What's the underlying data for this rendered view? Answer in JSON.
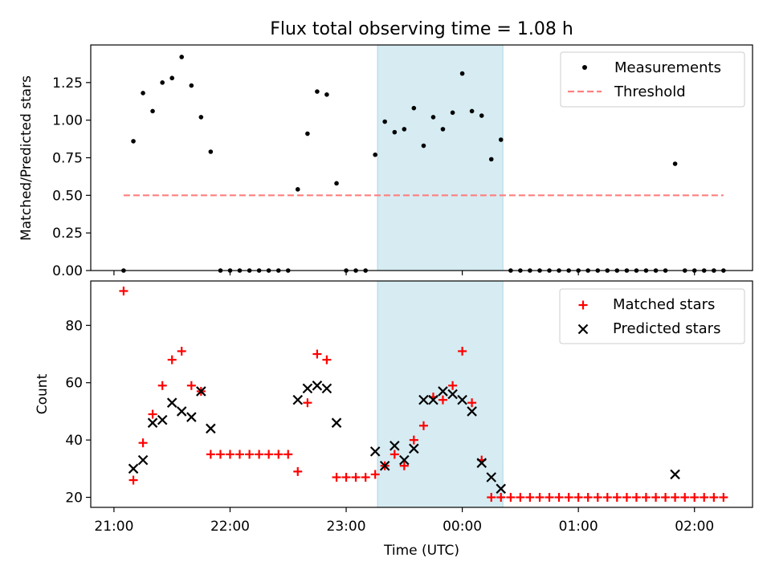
{
  "title": "Flux total observing time = 1.08 h",
  "xlabel": "Time (UTC)",
  "x_tick_labels": [
    "21:00",
    "22:00",
    "23:00",
    "00:00",
    "01:00",
    "02:00"
  ],
  "colors": {
    "measurements": "#000000",
    "threshold": "#ff7f7f",
    "matched": "#ff0000",
    "predicted": "#000000",
    "highlight": "#add8e6"
  },
  "chart_data": [
    {
      "type": "scatter",
      "ylabel": "Matched/Predicted stars",
      "x_unit": "hours after 21:00 UTC",
      "xlim": [
        -0.2,
        5.5
      ],
      "ylim": [
        0,
        1.5
      ],
      "y_ticks": [
        "0.00",
        "0.25",
        "0.50",
        "0.75",
        "1.00",
        "1.25"
      ],
      "highlight_span": [
        2.27,
        3.35
      ],
      "legend_position": "top-right",
      "series": [
        {
          "name": "Measurements",
          "marker": "dot",
          "x": [
            0.083,
            0.167,
            0.25,
            0.333,
            0.417,
            0.5,
            0.583,
            0.667,
            0.75,
            0.833,
            0.917,
            1.0,
            1.083,
            1.167,
            1.25,
            1.333,
            1.417,
            1.5,
            1.583,
            1.667,
            1.75,
            1.833,
            1.917,
            2.0,
            2.083,
            2.167,
            2.25,
            2.333,
            2.417,
            2.5,
            2.583,
            2.667,
            2.75,
            2.833,
            2.917,
            3.0,
            3.083,
            3.167,
            3.25,
            3.333,
            3.417,
            3.5,
            3.583,
            3.667,
            3.75,
            3.833,
            3.917,
            4.0,
            4.083,
            4.167,
            4.25,
            4.333,
            4.417,
            4.5,
            4.583,
            4.667,
            4.75,
            4.833,
            4.917,
            5.0,
            5.083,
            5.167,
            5.25
          ],
          "y": [
            0.0,
            0.86,
            1.18,
            1.06,
            1.25,
            1.28,
            1.42,
            1.23,
            1.02,
            0.79,
            0.0,
            0.0,
            0.0,
            0.0,
            0.0,
            0.0,
            0.0,
            0.0,
            0.54,
            0.91,
            1.19,
            1.17,
            0.58,
            0.0,
            0.0,
            0.0,
            0.77,
            0.99,
            0.92,
            0.94,
            1.08,
            0.83,
            1.02,
            0.94,
            1.05,
            1.31,
            1.06,
            1.03,
            0.74,
            0.87,
            0.0,
            0.0,
            0.0,
            0.0,
            0.0,
            0.0,
            0.0,
            0.0,
            0.0,
            0.0,
            0.0,
            0.0,
            0.0,
            0.0,
            0.0,
            0.0,
            0.0,
            0.71,
            0.0,
            0.0,
            0.0,
            0.0,
            0.0
          ]
        },
        {
          "name": "Threshold",
          "marker": "dashed-line",
          "x": [
            0.083,
            5.25
          ],
          "y": [
            0.5,
            0.5
          ]
        }
      ]
    },
    {
      "type": "scatter",
      "ylabel": "Count",
      "x_unit": "hours after 21:00 UTC",
      "xlim": [
        -0.2,
        5.5
      ],
      "ylim": [
        16.5,
        95.5
      ],
      "y_ticks": [
        "20",
        "40",
        "60",
        "80"
      ],
      "highlight_span": [
        2.27,
        3.35
      ],
      "legend_position": "top-right",
      "series": [
        {
          "name": "Matched stars",
          "marker": "plus",
          "x": [
            0.083,
            0.167,
            0.25,
            0.333,
            0.417,
            0.5,
            0.583,
            0.667,
            0.75,
            0.833,
            0.917,
            1.0,
            1.083,
            1.167,
            1.25,
            1.333,
            1.417,
            1.5,
            1.583,
            1.667,
            1.75,
            1.833,
            1.917,
            2.0,
            2.083,
            2.167,
            2.25,
            2.333,
            2.417,
            2.5,
            2.583,
            2.667,
            2.75,
            2.833,
            2.917,
            3.0,
            3.083,
            3.167,
            3.25,
            3.333,
            3.417,
            3.5,
            3.583,
            3.667,
            3.75,
            3.833,
            3.917,
            4.0,
            4.083,
            4.167,
            4.25,
            4.333,
            4.417,
            4.5,
            4.583,
            4.667,
            4.75,
            4.833,
            4.917,
            5.0,
            5.083,
            5.167,
            5.25
          ],
          "y": [
            92,
            26,
            39,
            49,
            59,
            68,
            71,
            59,
            57,
            35,
            35,
            35,
            35,
            35,
            35,
            35,
            35,
            35,
            29,
            53,
            70,
            68,
            27,
            27,
            27,
            27,
            28,
            31,
            35,
            31,
            40,
            45,
            55,
            54,
            59,
            71,
            53,
            33,
            20,
            20,
            20,
            20,
            20,
            20,
            20,
            20,
            20,
            20,
            20,
            20,
            20,
            20,
            20,
            20,
            20,
            20,
            20,
            20,
            20,
            20,
            20,
            20,
            20
          ]
        },
        {
          "name": "Predicted stars",
          "marker": "x",
          "x": [
            0.167,
            0.25,
            0.333,
            0.417,
            0.5,
            0.583,
            0.667,
            0.75,
            0.833,
            1.583,
            1.667,
            1.75,
            1.833,
            1.917,
            2.25,
            2.333,
            2.417,
            2.5,
            2.583,
            2.667,
            2.75,
            2.833,
            2.917,
            3.0,
            3.083,
            3.167,
            3.25,
            3.333,
            4.833
          ],
          "y": [
            30,
            33,
            46,
            47,
            53,
            50,
            48,
            57,
            44,
            54,
            58,
            59,
            58,
            46,
            36,
            31,
            38,
            33,
            37,
            54,
            54,
            57,
            56,
            54,
            50,
            32,
            27,
            23,
            28
          ]
        }
      ]
    }
  ]
}
